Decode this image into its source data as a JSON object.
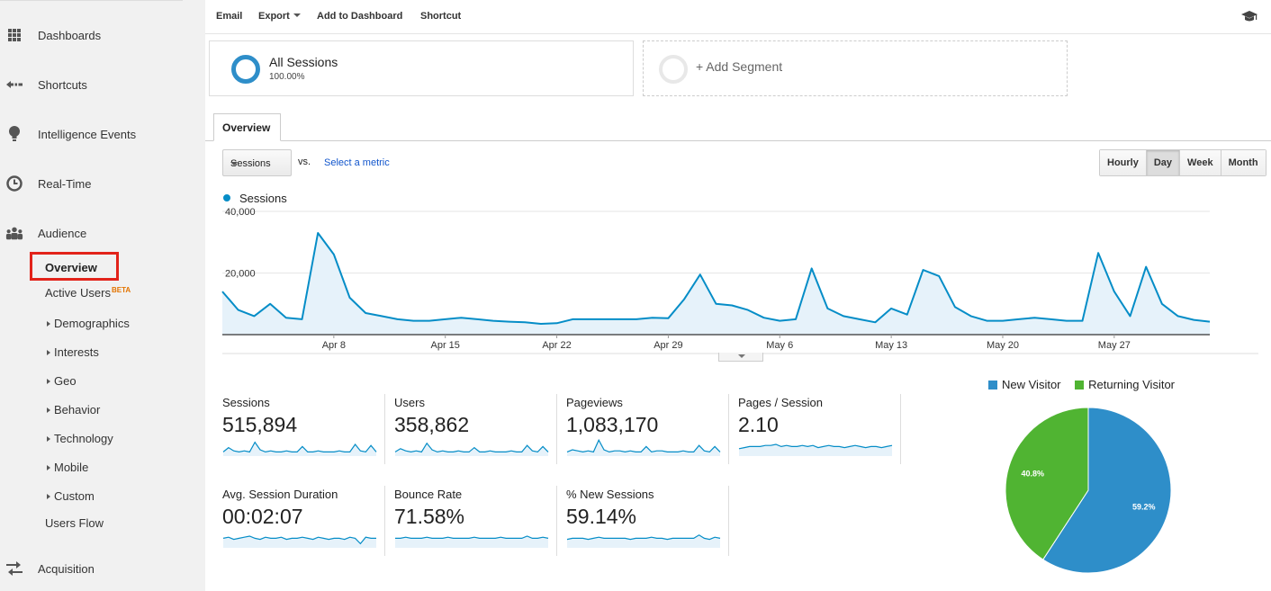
{
  "sidebar": {
    "items": [
      {
        "label": "Dashboards",
        "icon": "grid-icon"
      },
      {
        "label": "Shortcuts",
        "icon": "shortcut-arrow-icon"
      },
      {
        "label": "Intelligence Events",
        "icon": "lightbulb-icon"
      },
      {
        "label": "Real-Time",
        "icon": "clock-icon"
      },
      {
        "label": "Audience",
        "icon": "people-icon"
      },
      {
        "label": "Acquisition",
        "icon": "acquisition-arrows-icon"
      }
    ],
    "audience_sub": {
      "overview": "Overview",
      "active_users": "Active Users",
      "beta": "BETA",
      "demographics": "Demographics",
      "interests": "Interests",
      "geo": "Geo",
      "behavior": "Behavior",
      "technology": "Technology",
      "mobile": "Mobile",
      "custom": "Custom",
      "users_flow": "Users Flow"
    }
  },
  "toolbar": {
    "email": "Email",
    "export": "Export",
    "add_to_dashboard": "Add to Dashboard",
    "shortcut": "Shortcut",
    "right_icon": "graduation-cap-icon"
  },
  "segments": {
    "all_sessions": "All Sessions",
    "all_sessions_pct": "100.00%",
    "add_segment": "+ Add Segment"
  },
  "tabs": {
    "overview": "Overview"
  },
  "controls": {
    "metric": "Sessions",
    "vs": "vs.",
    "select_metric": "Select a metric",
    "granularity": [
      "Hourly",
      "Day",
      "Week",
      "Month"
    ],
    "active_granularity": "Day"
  },
  "colors": {
    "series": "#058dc7",
    "new_visitor": "#2e8ec9",
    "returning_visitor": "#50b432",
    "highlight_box": "#e2231a"
  },
  "chart_data": [
    {
      "type": "area",
      "legend": "Sessions",
      "x_ticks": [
        "Apr 8",
        "Apr 15",
        "Apr 22",
        "Apr 29",
        "May 6",
        "May 13",
        "May 20",
        "May 27"
      ],
      "y_ticks": [
        "20,000",
        "40,000"
      ],
      "ylim": [
        0,
        40000
      ],
      "series": [
        {
          "name": "Sessions",
          "values": [
            14000,
            8000,
            6000,
            10000,
            5500,
            5000,
            33000,
            26000,
            12000,
            7000,
            6000,
            5000,
            4500,
            4500,
            5000,
            5500,
            5000,
            4500,
            4200,
            4000,
            3500,
            3700,
            5000,
            5000,
            5000,
            5000,
            5000,
            5500,
            5300,
            11500,
            19500,
            10000,
            9500,
            8000,
            5500,
            4500,
            5000,
            21500,
            8500,
            6000,
            5000,
            4000,
            8500,
            6500,
            21000,
            19000,
            9000,
            6000,
            4500,
            4500,
            5000,
            5500,
            5000,
            4500,
            4500,
            26500,
            14000,
            6000,
            22000,
            10000,
            6000,
            4800,
            4200
          ]
        }
      ]
    },
    {
      "type": "pie",
      "legend": [
        "New Visitor",
        "Returning Visitor"
      ],
      "slices": [
        {
          "name": "New Visitor",
          "value": 59.2,
          "label": "59.2%"
        },
        {
          "name": "Returning Visitor",
          "value": 40.8,
          "label": "40.8%"
        }
      ]
    }
  ],
  "scorecards": [
    {
      "label": "Sessions",
      "value": "515,894",
      "spark": [
        3,
        7,
        4,
        3,
        4,
        3,
        12,
        5,
        3,
        4,
        3,
        3,
        4,
        3,
        3,
        8,
        3,
        3,
        4,
        3,
        3,
        3,
        4,
        3,
        3,
        10,
        4,
        3,
        9,
        3
      ]
    },
    {
      "label": "Users",
      "value": "358,862",
      "spark": [
        3,
        6,
        4,
        3,
        4,
        3,
        11,
        5,
        3,
        4,
        3,
        3,
        4,
        3,
        3,
        7,
        3,
        3,
        4,
        3,
        3,
        3,
        4,
        3,
        3,
        9,
        4,
        3,
        8,
        3
      ]
    },
    {
      "label": "Pageviews",
      "value": "1,083,170",
      "spark": [
        3,
        5,
        4,
        3,
        4,
        3,
        14,
        5,
        3,
        4,
        4,
        3,
        4,
        3,
        3,
        8,
        3,
        4,
        4,
        3,
        3,
        3,
        4,
        3,
        3,
        9,
        4,
        3,
        8,
        3
      ]
    },
    {
      "label": "Pages / Session",
      "value": "2.10",
      "spark": [
        6,
        7,
        8,
        8,
        8,
        9,
        9,
        10,
        8,
        9,
        8,
        8,
        9,
        8,
        9,
        7,
        8,
        9,
        8,
        8,
        7,
        8,
        9,
        8,
        7,
        8,
        8,
        7,
        8,
        9
      ]
    },
    {
      "label": "Avg. Session Duration",
      "value": "00:02:07",
      "spark": [
        8,
        9,
        7,
        8,
        9,
        10,
        8,
        7,
        9,
        8,
        8,
        9,
        7,
        8,
        8,
        9,
        8,
        7,
        9,
        8,
        7,
        8,
        8,
        7,
        9,
        8,
        3,
        9,
        8,
        8
      ]
    },
    {
      "label": "Bounce Rate",
      "value": "71.58%",
      "spark": [
        8,
        8,
        9,
        8,
        8,
        8,
        9,
        8,
        8,
        8,
        9,
        8,
        8,
        8,
        8,
        9,
        8,
        8,
        8,
        8,
        9,
        8,
        8,
        8,
        8,
        10,
        8,
        8,
        9,
        8
      ]
    },
    {
      "label": "% New Sessions",
      "value": "59.14%",
      "spark": [
        7,
        8,
        8,
        8,
        7,
        8,
        9,
        8,
        8,
        8,
        8,
        8,
        7,
        8,
        8,
        8,
        9,
        8,
        8,
        7,
        8,
        8,
        8,
        8,
        8,
        11,
        8,
        7,
        9,
        8
      ]
    }
  ]
}
